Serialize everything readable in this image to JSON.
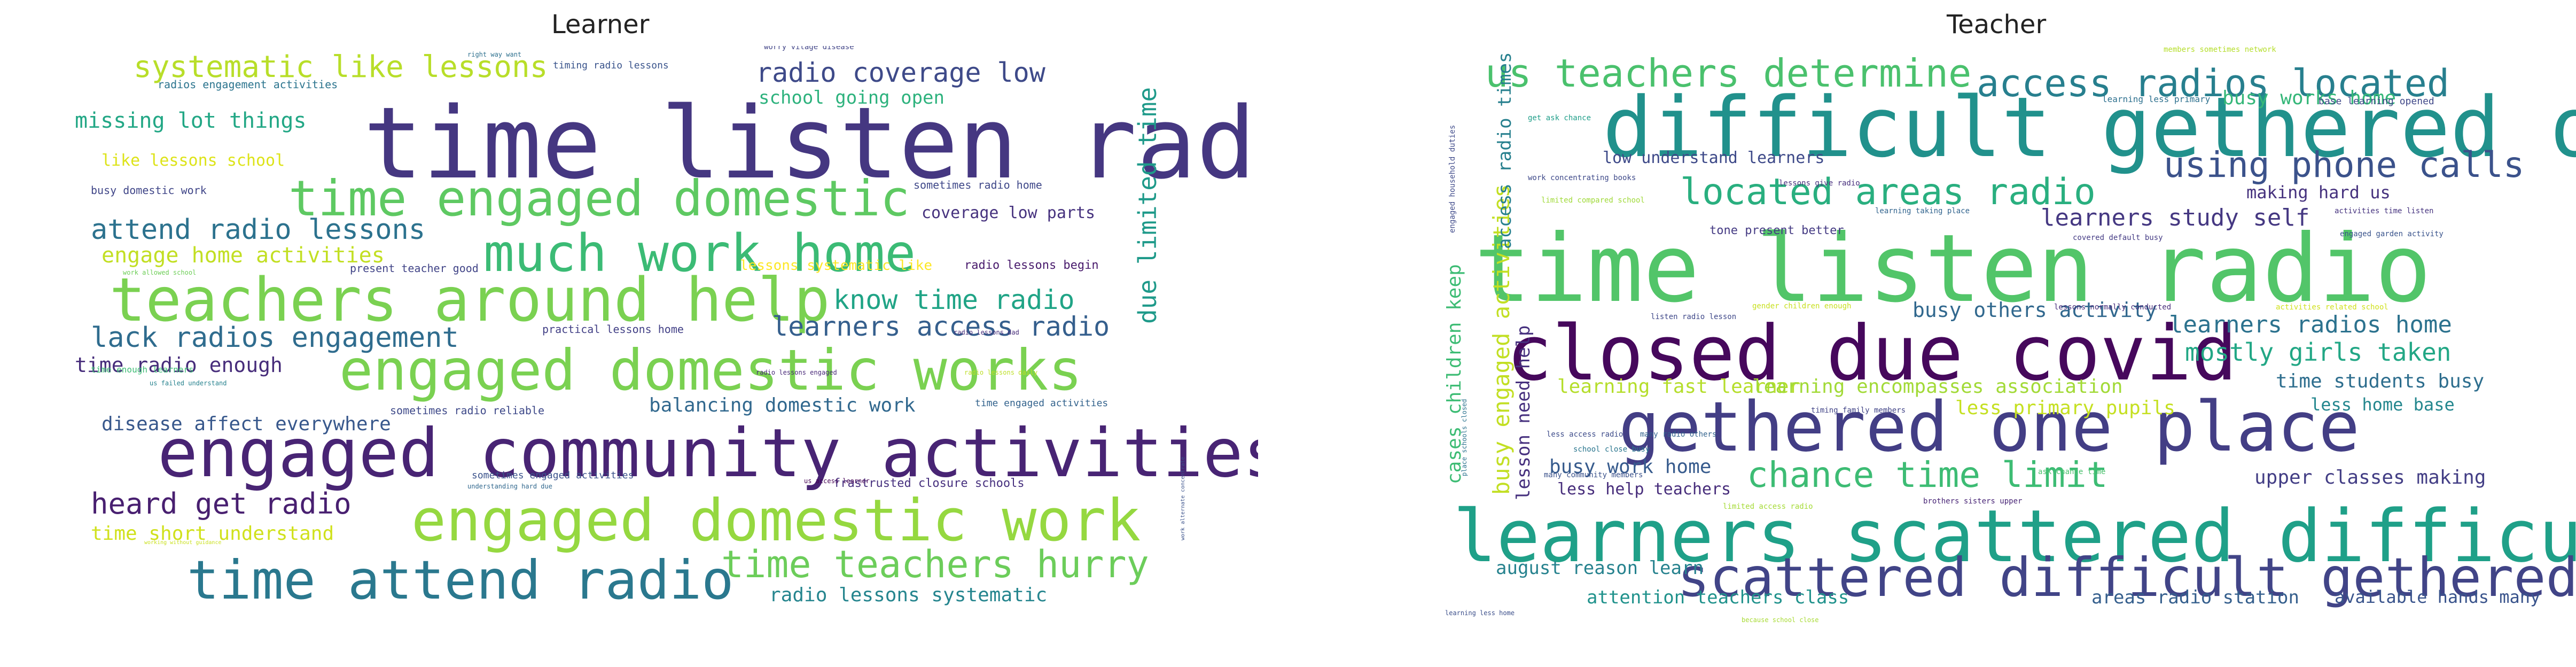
{
  "panels": [
    {
      "title": "Learner",
      "words": [
        {
          "text": "time listen radio",
          "color": "#453781",
          "weight": "big"
        },
        {
          "text": "engaged community activities",
          "color": "#482474",
          "weight": "big"
        },
        {
          "text": "teachers around help",
          "color": "#7ad151",
          "weight": "big"
        },
        {
          "text": "engaged domestic works",
          "color": "#7ad151",
          "weight": "big"
        },
        {
          "text": "engaged domestic work",
          "color": "#95d840",
          "weight": "big"
        },
        {
          "text": "time engaged domestic",
          "color": "#5ec962",
          "weight": "big"
        },
        {
          "text": "much work home",
          "color": "#3bbb75",
          "weight": "big"
        },
        {
          "text": "time attend radio",
          "color": "#2a788e",
          "weight": "big"
        },
        {
          "text": "time teachers hurry",
          "color": "#6ccd5a",
          "weight": "mid"
        },
        {
          "text": "systematic like lessons",
          "color": "#b8de29",
          "weight": "mid"
        },
        {
          "text": "attend radio lessons",
          "color": "#2c728e",
          "weight": "mid"
        },
        {
          "text": "lack radios engagement",
          "color": "#2f6c8e",
          "weight": "mid"
        },
        {
          "text": "learners access radio",
          "color": "#355f8d",
          "weight": "mid"
        },
        {
          "text": "know time radio",
          "color": "#20a486",
          "weight": "mid"
        },
        {
          "text": "radio coverage low",
          "color": "#3e4a89",
          "weight": "mid"
        },
        {
          "text": "heard get radio",
          "color": "#481f70",
          "weight": "mid"
        },
        {
          "text": "missing lot things",
          "color": "#22a785",
          "weight": "small"
        },
        {
          "text": "engage home activities",
          "color": "#c2df23",
          "weight": "small"
        },
        {
          "text": "time radio enough",
          "color": "#472d7b",
          "weight": "small"
        },
        {
          "text": "balancing domestic work",
          "color": "#31688e",
          "weight": "small"
        },
        {
          "text": "disease affect everywhere",
          "color": "#38588c",
          "weight": "small"
        },
        {
          "text": "time short understand",
          "color": "#d0e11c",
          "weight": "small"
        },
        {
          "text": "radio lessons systematic",
          "color": "#25858e",
          "weight": "small"
        },
        {
          "text": "school going open",
          "color": "#2db27d",
          "weight": "small"
        },
        {
          "text": "like lessons school",
          "color": "#dde318",
          "weight": "small"
        },
        {
          "text": "coverage low parts",
          "color": "#46327e",
          "weight": "tiny"
        },
        {
          "text": "lessons systematic like",
          "color": "#fde725",
          "weight": "tiny"
        },
        {
          "text": "radio lessons begin",
          "color": "#481a6c",
          "weight": "tiny"
        },
        {
          "text": "sometimes radio home",
          "color": "#3f4889",
          "weight": "tiny"
        },
        {
          "text": "busy domestic work",
          "color": "#404688",
          "weight": "tiny"
        },
        {
          "text": "present teacher good",
          "color": "#414487",
          "weight": "tiny"
        },
        {
          "text": "practical lessons home",
          "color": "#424086",
          "weight": "tiny"
        },
        {
          "text": "sometimes radio reliable",
          "color": "#3e4989",
          "weight": "tiny"
        },
        {
          "text": "time engaged activities",
          "color": "#33638d",
          "weight": "tiny"
        },
        {
          "text": "sometimes engaged activities",
          "color": "#3b528b",
          "weight": "tiny"
        },
        {
          "text": "frastrusted closure schools",
          "color": "#46307e",
          "weight": "tiny"
        },
        {
          "text": "timing radio lessons",
          "color": "#3a548c",
          "weight": "micro"
        },
        {
          "text": "worry vilage disease",
          "color": "#414487",
          "weight": "micro"
        },
        {
          "text": "right way want",
          "color": "#2d708e",
          "weight": "micro"
        },
        {
          "text": "radios engagement activities",
          "color": "#2b748e",
          "weight": "micro"
        },
        {
          "text": "work allowed school",
          "color": "#6ece58",
          "weight": "micro"
        },
        {
          "text": "time enough learners",
          "color": "#3dbc74",
          "weight": "micro"
        },
        {
          "text": "us failed understand",
          "color": "#26828e",
          "weight": "micro"
        },
        {
          "text": "radio lessons engaged",
          "color": "#482878",
          "weight": "micro"
        },
        {
          "text": "radio lessons daily",
          "color": "#bddf26",
          "weight": "micro"
        },
        {
          "text": "radio lessons dad",
          "color": "#472c7a",
          "weight": "micro"
        },
        {
          "text": "understanding hard due",
          "color": "#31688e",
          "weight": "micro"
        },
        {
          "text": "us access learner",
          "color": "#440154",
          "weight": "micro"
        },
        {
          "text": "working without guidance",
          "color": "#cae11f",
          "weight": "micro"
        },
        {
          "text": "due limited time",
          "color": "#1f9a8a",
          "weight": "vertical"
        },
        {
          "text": "work alternate concentrate",
          "color": "#3b528b",
          "weight": "vertical-micro"
        }
      ]
    },
    {
      "title": "Teacher",
      "words": [
        {
          "text": "time listen radio",
          "color": "#52c569",
          "weight": "big"
        },
        {
          "text": "difficult gethered one",
          "color": "#21918c",
          "weight": "big"
        },
        {
          "text": "learners scattered difficult",
          "color": "#1fa088",
          "weight": "big"
        },
        {
          "text": "closed due covid",
          "color": "#46085c",
          "weight": "big"
        },
        {
          "text": "gethered one place",
          "color": "#433e85",
          "weight": "big"
        },
        {
          "text": "scattered difficult gethered",
          "color": "#414487",
          "weight": "big"
        },
        {
          "text": "us teachers determine",
          "color": "#4ac16d",
          "weight": "mid"
        },
        {
          "text": "access radios located",
          "color": "#277f8e",
          "weight": "mid"
        },
        {
          "text": "located areas radio",
          "color": "#29af7f",
          "weight": "mid"
        },
        {
          "text": "using phone calls",
          "color": "#3b528b",
          "weight": "mid"
        },
        {
          "text": "chance time limit",
          "color": "#3dbc74",
          "weight": "mid"
        },
        {
          "text": "learners study self",
          "color": "#453882",
          "weight": "small"
        },
        {
          "text": "learners radios home",
          "color": "#2c728e",
          "weight": "small"
        },
        {
          "text": "mostly girls taken",
          "color": "#22a785",
          "weight": "small"
        },
        {
          "text": "busy others activity",
          "color": "#31688e",
          "weight": "small"
        },
        {
          "text": "busy work home",
          "color": "#375b8d",
          "weight": "small"
        },
        {
          "text": "busy works home",
          "color": "#35b779",
          "weight": "tiny"
        },
        {
          "text": "learning fast learner",
          "color": "#b5de2b",
          "weight": "tiny"
        },
        {
          "text": "learning encompasses association",
          "color": "#a2da37",
          "weight": "tiny"
        },
        {
          "text": "less primary pupils",
          "color": "#c5e021",
          "weight": "tiny"
        },
        {
          "text": "time students busy",
          "color": "#2e6e8e",
          "weight": "tiny"
        },
        {
          "text": "less home base",
          "color": "#24878e",
          "weight": "tiny"
        },
        {
          "text": "less help teachers",
          "color": "#472d7b",
          "weight": "tiny"
        },
        {
          "text": "upper classes making",
          "color": "#433e85",
          "weight": "tiny"
        },
        {
          "text": "august reason learn",
          "color": "#26828e",
          "weight": "tiny"
        },
        {
          "text": "attention teachers class",
          "color": "#20928c",
          "weight": "tiny"
        },
        {
          "text": "areas radio station",
          "color": "#355f8d",
          "weight": "tiny"
        },
        {
          "text": "available hands many",
          "color": "#3a548c",
          "weight": "tiny"
        },
        {
          "text": "low understand learners",
          "color": "#3e4a89",
          "weight": "tiny"
        },
        {
          "text": "making hard us",
          "color": "#46327e",
          "weight": "micro"
        },
        {
          "text": "tone present better",
          "color": "#443a83",
          "weight": "micro"
        },
        {
          "text": "base learning opened",
          "color": "#3f4788",
          "weight": "micro"
        },
        {
          "text": "learning less primary",
          "color": "#2d708e",
          "weight": "micro"
        },
        {
          "text": "members sometimes network",
          "color": "#b5de2b",
          "weight": "micro"
        },
        {
          "text": "get ask chance",
          "color": "#1f9e89",
          "weight": "micro"
        },
        {
          "text": "work concentrating books",
          "color": "#3e4989",
          "weight": "micro"
        },
        {
          "text": "lessons give radio",
          "color": "#472f7d",
          "weight": "micro"
        },
        {
          "text": "limited compared school",
          "color": "#a0da39",
          "weight": "micro"
        },
        {
          "text": "learning taking place",
          "color": "#32648e",
          "weight": "micro"
        },
        {
          "text": "covered default busy",
          "color": "#443b84",
          "weight": "micro"
        },
        {
          "text": "activities time listen",
          "color": "#46337f",
          "weight": "micro"
        },
        {
          "text": "engaged garden activity",
          "color": "#3a548c",
          "weight": "micro"
        },
        {
          "text": "listen radio lesson",
          "color": "#3f4889",
          "weight": "micro"
        },
        {
          "text": "gender children enough",
          "color": "#c8e020",
          "weight": "micro"
        },
        {
          "text": "lessons normally conducted",
          "color": "#472c7a",
          "weight": "micro"
        },
        {
          "text": "activities related school",
          "color": "#d0e11c",
          "weight": "micro"
        },
        {
          "text": "timing family members",
          "color": "#414487",
          "weight": "micro"
        },
        {
          "text": "less access radio",
          "color": "#3e4c8a",
          "weight": "micro"
        },
        {
          "text": "many radio others",
          "color": "#33638d",
          "weight": "micro"
        },
        {
          "text": "school close busy",
          "color": "#2a768e",
          "weight": "micro"
        },
        {
          "text": "many community members",
          "color": "#3b528b",
          "weight": "micro"
        },
        {
          "text": "limited access radio",
          "color": "#a5db36",
          "weight": "micro"
        },
        {
          "text": "brothers sisters upper",
          "color": "#482576",
          "weight": "micro"
        },
        {
          "text": "ask chance time",
          "color": "#4ac16d",
          "weight": "micro"
        },
        {
          "text": "learning less home",
          "color": "#3c4f8a",
          "weight": "micro"
        },
        {
          "text": "because school close",
          "color": "#a8db34",
          "weight": "micro"
        },
        {
          "text": "cases children keep",
          "color": "#3dbc74",
          "weight": "vertical"
        },
        {
          "text": "busy engaged activities",
          "color": "#c2df23",
          "weight": "vertical"
        },
        {
          "text": "access radio times",
          "color": "#27808e",
          "weight": "vertical"
        },
        {
          "text": "lesson need help",
          "color": "#46307e",
          "weight": "vertical"
        },
        {
          "text": "access radio parents",
          "color": "#26828e",
          "weight": "vertical"
        },
        {
          "text": "engaged household duties",
          "color": "#3e4989",
          "weight": "vertical-micro"
        },
        {
          "text": "place schools closed",
          "color": "#2c738e",
          "weight": "vertical-micro"
        },
        {
          "text": "learning opened school",
          "color": "#443983",
          "weight": "vertical-micro"
        }
      ]
    }
  ]
}
